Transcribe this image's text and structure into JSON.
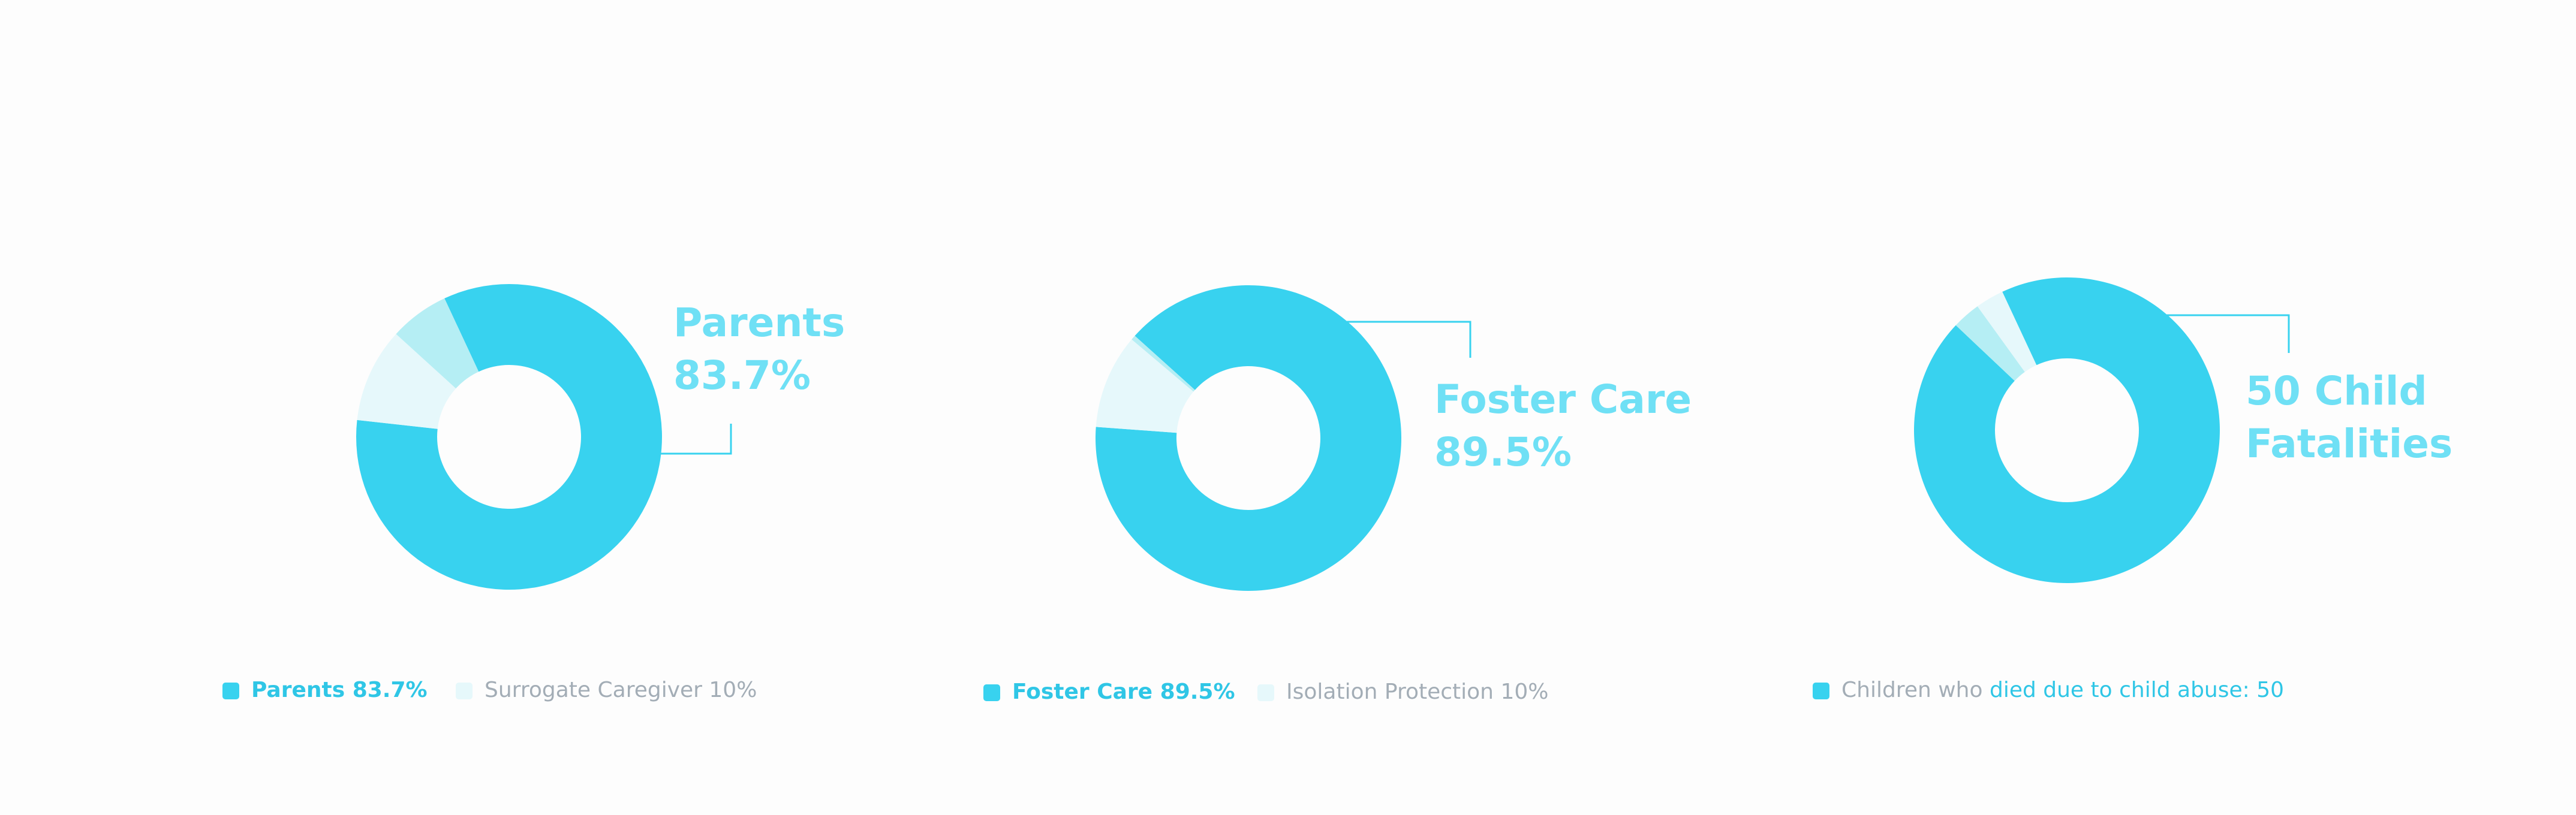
{
  "chart_data": [
    {
      "type": "pie",
      "categories": [
        "Parents",
        "Surrogate Caregiver",
        null
      ],
      "values": [
        83.7,
        10,
        6.3
      ],
      "value_labels": [
        "83.7%",
        "10%",
        null
      ],
      "colors": [
        "#38d2ef",
        "#e6f8fb",
        "#b5eef4"
      ]
    },
    {
      "type": "pie",
      "categories": [
        "Foster Care",
        "Isolation Protection",
        null
      ],
      "values": [
        89.5,
        10,
        0.5
      ],
      "value_labels": [
        "89.5%",
        "10%",
        null
      ],
      "colors": [
        "#38d2ef",
        "#e6f8fb",
        "#b5eef4"
      ]
    },
    {
      "type": "pie",
      "categories": [
        null,
        null,
        null
      ],
      "values": [
        94,
        3,
        3
      ],
      "colors": [
        "#38d2ef",
        "#b5eef4",
        "#e6f8fb"
      ],
      "callout": [
        "50 Child",
        "Fatalities"
      ],
      "legend_prefix": "Children who",
      "legend_highlight": "died due to child abuse: 50"
    }
  ]
}
